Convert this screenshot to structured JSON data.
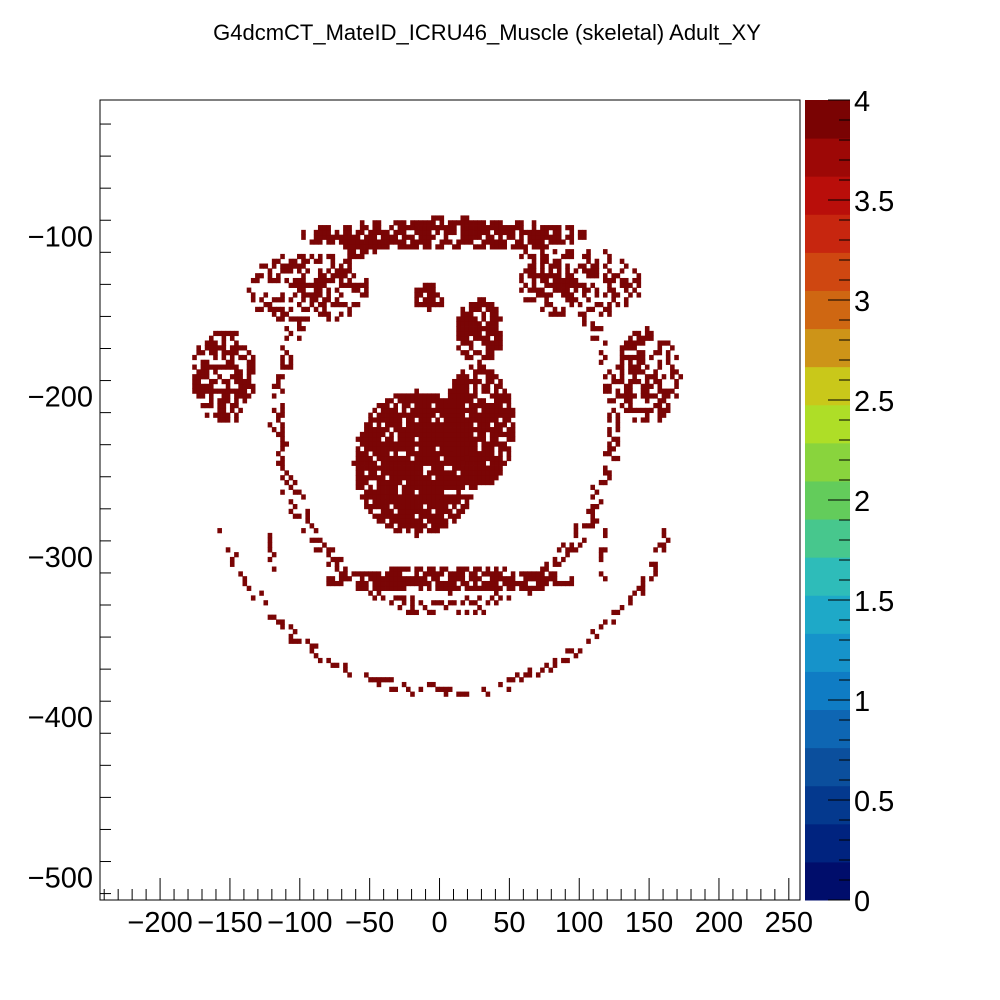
{
  "chart_data": {
    "type": "heatmap",
    "title": "G4dcmCT_MateID_ICRU46_Muscle (skeletal) Adult_XY",
    "xlabel": "",
    "ylabel": "",
    "xlim": [
      -243,
      258
    ],
    "ylim": [
      -514,
      -15
    ],
    "x_ticks": [
      -200,
      -150,
      -100,
      -50,
      0,
      50,
      100,
      150,
      200,
      250
    ],
    "x_tick_labels": [
      "−200",
      "−150",
      "−100",
      "−50",
      "0",
      "50",
      "100",
      "150",
      "200",
      "250"
    ],
    "y_ticks": [
      -100,
      -200,
      -300,
      -400,
      -500
    ],
    "y_tick_labels": [
      "−100",
      "−200",
      "−300",
      "−400",
      "−500"
    ],
    "z_range": [
      0,
      4
    ],
    "colorbar_ticks": [
      0,
      0.5,
      1,
      1.5,
      2,
      2.5,
      3,
      3.5,
      4
    ],
    "colorbar_tick_labels": [
      "0",
      "0.5",
      "1",
      "1.5",
      "2",
      "2.5",
      "3",
      "3.5",
      "4"
    ],
    "colorbar_colors": [
      "#000d6b",
      "#00237f",
      "#04398e",
      "#0b4f9d",
      "#0e66b3",
      "#0f7cc4",
      "#1693ca",
      "#1ea9c8",
      "#2ebcb9",
      "#47c78d",
      "#63cc5b",
      "#89d43d",
      "#aede27",
      "#c9c81a",
      "#cd9418",
      "#cf6712",
      "#cf4711",
      "#c7260f",
      "#b90e0a",
      "#9d0806",
      "#7a0303"
    ],
    "data_color": "#7a0505",
    "regions": {
      "rings": [
        {
          "name": "outer-skin-ring",
          "cx": 3,
          "cy": -233,
          "rx": 170,
          "ry": 152,
          "a0": 200,
          "a1": 340,
          "density": 0.55,
          "thick": 3,
          "value": 4
        },
        {
          "name": "inner-torso-ring",
          "cx": 3,
          "cy": -214,
          "rx": 120,
          "ry": 120,
          "a0": 0,
          "a1": 360,
          "density": 0.65,
          "thick": 5,
          "value": 4
        }
      ],
      "blobs": [
        {
          "name": "anterior-muscle-band",
          "cx": 2,
          "cy": -100,
          "rx": 105,
          "ry": 10,
          "density": 0.7,
          "value": 4
        },
        {
          "name": "left-upper-pec",
          "cx": -95,
          "cy": -135,
          "rx": 45,
          "ry": 22,
          "density": 0.45,
          "value": 4
        },
        {
          "name": "right-upper-pec",
          "cx": 100,
          "cy": -130,
          "rx": 45,
          "ry": 22,
          "density": 0.45,
          "value": 4
        },
        {
          "name": "left-arm-muscle",
          "cx": -155,
          "cy": -190,
          "rx": 24,
          "ry": 30,
          "density": 0.6,
          "value": 4
        },
        {
          "name": "right-arm-muscle",
          "cx": 148,
          "cy": -190,
          "rx": 24,
          "ry": 30,
          "density": 0.6,
          "value": 4
        },
        {
          "name": "heart-upper",
          "cx": 28,
          "cy": -160,
          "rx": 18,
          "ry": 20,
          "density": 0.8,
          "value": 4
        },
        {
          "name": "heart-main",
          "cx": -18,
          "cy": -242,
          "rx": 45,
          "ry": 45,
          "density": 0.85,
          "value": 4
        },
        {
          "name": "heart-right",
          "cx": 25,
          "cy": -220,
          "rx": 26,
          "ry": 38,
          "density": 0.8,
          "value": 4
        },
        {
          "name": "aorta-mid",
          "cx": -8,
          "cy": -140,
          "rx": 12,
          "ry": 8,
          "density": 0.85,
          "value": 4
        },
        {
          "name": "posterior-band",
          "cx": 5,
          "cy": -315,
          "rx": 90,
          "ry": 8,
          "density": 0.7,
          "value": 4
        },
        {
          "name": "left-back-fragment",
          "cx": -120,
          "cy": -300,
          "rx": 8,
          "ry": 16,
          "density": 0.35,
          "value": 4
        },
        {
          "name": "right-back-fragment",
          "cx": 118,
          "cy": -300,
          "rx": 6,
          "ry": 16,
          "density": 0.35,
          "value": 4
        }
      ]
    }
  }
}
